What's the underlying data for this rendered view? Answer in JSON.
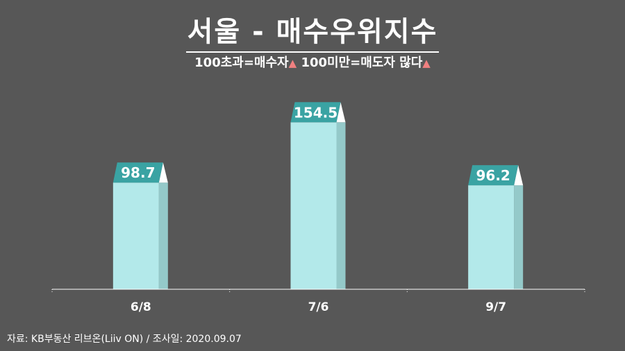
{
  "header": {
    "title": "서울 - 매수우위지수",
    "subtitle_part1": "100초과=매수자",
    "subtitle_part2": "100미만=매도자 많다"
  },
  "footer": {
    "source": "자료: KB부동산 리브온(Liiv ON)",
    "survey_date": "/ 조사일: 2020.09.07"
  },
  "colors": {
    "background": "#575757",
    "bar_front": "#b3e9ea",
    "bar_side": "#94c9c9",
    "label_bg": "#3aa3a3",
    "triangle": "#f08080"
  },
  "chart_data": {
    "type": "bar",
    "categories": [
      "6/8",
      "7/6",
      "9/7"
    ],
    "values": [
      98.7,
      154.5,
      96.2
    ],
    "labels": [
      "98.7",
      "154.5",
      "96.2"
    ],
    "ylim": [
      0,
      200
    ]
  }
}
